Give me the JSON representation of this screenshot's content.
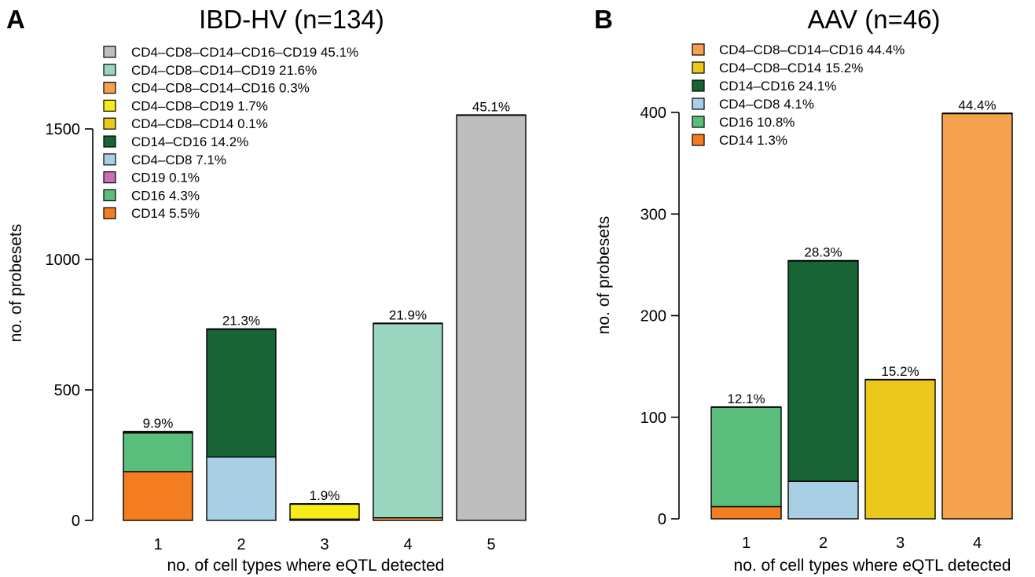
{
  "chart_data": [
    {
      "type": "bar",
      "stacked": true,
      "panel_label": "A",
      "title": "IBD-HV (n=134)",
      "xlabel": "no. of cell types where eQTL detected",
      "ylabel": "no. of probesets",
      "categories": [
        "1",
        "2",
        "3",
        "4",
        "5"
      ],
      "yticks": [
        0,
        500,
        1000,
        1500
      ],
      "ylim": [
        0,
        1600
      ],
      "totals": [
        340,
        733,
        63,
        755,
        1553
      ],
      "bar_labels": [
        "9.9%",
        "21.3%",
        "1.9%",
        "21.9%",
        "45.1%"
      ],
      "legend": [
        {
          "label": "CD4–CD8–CD14–CD16–CD19 45.1%",
          "color": "#bebebe"
        },
        {
          "label": "CD4–CD8–CD14–CD19 21.6%",
          "color": "#9ad5c0"
        },
        {
          "label": "CD4–CD8–CD14–CD16 0.3%",
          "color": "#f5a24e"
        },
        {
          "label": "CD4–CD8–CD19 1.7%",
          "color": "#f6ec18"
        },
        {
          "label": "CD4–CD8–CD14 0.1%",
          "color": "#ebc81c"
        },
        {
          "label": "CD14–CD16 14.2%",
          "color": "#186434"
        },
        {
          "label": "CD4–CD8 7.1%",
          "color": "#a8cfe3"
        },
        {
          "label": "CD19 0.1%",
          "color": "#c86fb4"
        },
        {
          "label": "CD16 4.3%",
          "color": "#59bd7b"
        },
        {
          "label": "CD14 5.5%",
          "color": "#f47d20"
        }
      ],
      "segments": [
        [
          {
            "color": "#f47d20",
            "value": 187
          },
          {
            "color": "#59bd7b",
            "value": 148
          },
          {
            "color": "#c86fb4",
            "value": 5
          }
        ],
        [
          {
            "color": "#a8cfe3",
            "value": 243
          },
          {
            "color": "#186434",
            "value": 490
          }
        ],
        [
          {
            "color": "#ebc81c",
            "value": 5
          },
          {
            "color": "#f6ec18",
            "value": 58
          }
        ],
        [
          {
            "color": "#f5a24e",
            "value": 10
          },
          {
            "color": "#9ad5c0",
            "value": 745
          }
        ],
        [
          {
            "color": "#bebebe",
            "value": 1553
          }
        ]
      ]
    },
    {
      "type": "bar",
      "stacked": true,
      "panel_label": "B",
      "title": "AAV (n=46)",
      "xlabel": "no. of cell types where eQTL detected",
      "ylabel": "no. of probesets",
      "categories": [
        "1",
        "2",
        "3",
        "4"
      ],
      "yticks": [
        0,
        100,
        200,
        300,
        400
      ],
      "ylim": [
        0,
        410
      ],
      "totals": [
        110,
        254,
        137,
        399
      ],
      "bar_labels": [
        "12.1%",
        "28.3%",
        "15.2%",
        "44.4%"
      ],
      "legend": [
        {
          "label": "CD4–CD8–CD14–CD16 44.4%",
          "color": "#f5a24e"
        },
        {
          "label": "CD4–CD8–CD14 15.2%",
          "color": "#ebc81c"
        },
        {
          "label": "CD14–CD16 24.1%",
          "color": "#186434"
        },
        {
          "label": "CD4–CD8 4.1%",
          "color": "#a8cfe3"
        },
        {
          "label": "CD16 10.8%",
          "color": "#59bd7b"
        },
        {
          "label": "CD14 1.3%",
          "color": "#f47d20"
        }
      ],
      "segments": [
        [
          {
            "color": "#f47d20",
            "value": 12
          },
          {
            "color": "#59bd7b",
            "value": 98
          }
        ],
        [
          {
            "color": "#a8cfe3",
            "value": 37
          },
          {
            "color": "#186434",
            "value": 217
          }
        ],
        [
          {
            "color": "#ebc81c",
            "value": 137
          }
        ],
        [
          {
            "color": "#f5a24e",
            "value": 399
          }
        ]
      ]
    }
  ]
}
